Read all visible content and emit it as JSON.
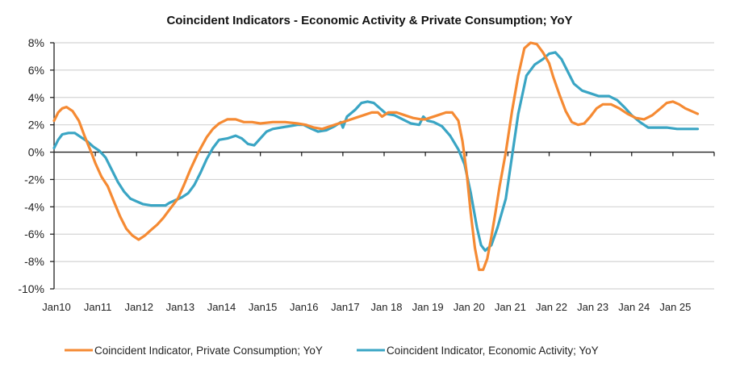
{
  "chart_data": {
    "type": "line",
    "title": "Coincident Indicators - Economic Activity & Private Consumption; YoY",
    "xlabel": "",
    "ylabel": "",
    "ylim": [
      -10,
      8
    ],
    "yticks": [
      8,
      6,
      4,
      2,
      0,
      -2,
      -4,
      -6,
      -8,
      -10
    ],
    "ytick_labels": [
      "8%",
      "6%",
      "4%",
      "2%",
      "0%",
      "-2%",
      "-4%",
      "-6%",
      "-8%",
      "-10%"
    ],
    "xlim": [
      2010.0,
      2026.0
    ],
    "xtick_labels": [
      "Jan10",
      "Jan11",
      "Jan12",
      "Jan13",
      "Jan14",
      "Jan15",
      "Jan16",
      "Jan17",
      "Jan 18",
      "Jan 19",
      "Jan 20",
      "Jan 21",
      "Jan 22",
      "Jan 23",
      "Jan 24",
      "Jan 25"
    ],
    "xtick_values": [
      2010,
      2011,
      2012,
      2013,
      2014,
      2015,
      2016,
      2017,
      2018,
      2019,
      2020,
      2021,
      2022,
      2023,
      2024,
      2025
    ],
    "grid": true,
    "legend_position": "bottom",
    "series": [
      {
        "name": "Coincident Indicator, Private Consumption; YoY",
        "color": "#F58A33",
        "x": [
          2010.0,
          2010.1,
          2010.2,
          2010.3,
          2010.45,
          2010.6,
          2010.75,
          2010.9,
          2011.0,
          2011.15,
          2011.3,
          2011.45,
          2011.6,
          2011.75,
          2011.9,
          2012.05,
          2012.2,
          2012.35,
          2012.5,
          2012.65,
          2012.8,
          2013.0,
          2013.15,
          2013.3,
          2013.5,
          2013.7,
          2013.85,
          2014.0,
          2014.2,
          2014.4,
          2014.6,
          2014.8,
          2015.0,
          2015.3,
          2015.6,
          2015.9,
          2016.1,
          2016.3,
          2016.5,
          2016.7,
          2016.9,
          2017.1,
          2017.3,
          2017.5,
          2017.7,
          2017.85,
          2017.95,
          2018.1,
          2018.3,
          2018.5,
          2018.7,
          2018.9,
          2019.0,
          2019.1,
          2019.3,
          2019.5,
          2019.65,
          2019.8,
          2019.9,
          2020.0,
          2020.1,
          2020.2,
          2020.3,
          2020.4,
          2020.5,
          2020.6,
          2020.7,
          2020.8,
          2020.95,
          2021.1,
          2021.25,
          2021.4,
          2021.55,
          2021.7,
          2021.85,
          2022.0,
          2022.1,
          2022.25,
          2022.4,
          2022.55,
          2022.7,
          2022.85,
          2023.0,
          2023.15,
          2023.3,
          2023.5,
          2023.7,
          2023.9,
          2024.1,
          2024.3,
          2024.5,
          2024.7,
          2024.85,
          2025.0,
          2025.15,
          2025.3,
          2025.45,
          2025.6
        ],
        "values": [
          2.3,
          2.9,
          3.2,
          3.3,
          3.0,
          2.3,
          1.1,
          0.0,
          -0.8,
          -1.8,
          -2.5,
          -3.6,
          -4.7,
          -5.6,
          -6.1,
          -6.4,
          -6.1,
          -5.7,
          -5.3,
          -4.8,
          -4.2,
          -3.4,
          -2.4,
          -1.3,
          0.0,
          1.1,
          1.7,
          2.1,
          2.4,
          2.4,
          2.2,
          2.2,
          2.1,
          2.2,
          2.2,
          2.1,
          2.0,
          1.8,
          1.7,
          1.9,
          2.1,
          2.3,
          2.5,
          2.7,
          2.9,
          2.9,
          2.6,
          2.9,
          2.9,
          2.7,
          2.5,
          2.4,
          2.4,
          2.5,
          2.7,
          2.9,
          2.9,
          2.3,
          0.8,
          -1.5,
          -4.5,
          -7.0,
          -8.6,
          -8.6,
          -7.8,
          -6.2,
          -4.4,
          -2.5,
          0.0,
          3.0,
          5.6,
          7.6,
          8.0,
          7.9,
          7.3,
          6.5,
          5.5,
          4.2,
          3.0,
          2.2,
          2.0,
          2.1,
          2.6,
          3.2,
          3.5,
          3.5,
          3.2,
          2.8,
          2.5,
          2.4,
          2.7,
          3.2,
          3.6,
          3.7,
          3.5,
          3.2,
          3.0,
          2.8
        ]
      },
      {
        "name": "Coincident Indicator, Economic Activity; YoY",
        "color": "#3AA5C4",
        "x": [
          2010.0,
          2010.1,
          2010.2,
          2010.35,
          2010.5,
          2010.65,
          2010.8,
          2010.95,
          2011.1,
          2011.25,
          2011.4,
          2011.55,
          2011.7,
          2011.85,
          2012.0,
          2012.15,
          2012.35,
          2012.55,
          2012.7,
          2012.8,
          2012.95,
          2013.1,
          2013.25,
          2013.4,
          2013.55,
          2013.7,
          2013.85,
          2014.0,
          2014.2,
          2014.4,
          2014.55,
          2014.7,
          2014.85,
          2015.0,
          2015.15,
          2015.3,
          2015.5,
          2015.7,
          2015.9,
          2016.05,
          2016.25,
          2016.4,
          2016.6,
          2016.8,
          2016.95,
          2017.0,
          2017.1,
          2017.3,
          2017.45,
          2017.6,
          2017.75,
          2017.9,
          2018.05,
          2018.25,
          2018.45,
          2018.65,
          2018.85,
          2018.95,
          2019.05,
          2019.2,
          2019.4,
          2019.6,
          2019.8,
          2019.95,
          2020.1,
          2020.25,
          2020.35,
          2020.45,
          2020.6,
          2020.75,
          2020.95,
          2021.1,
          2021.25,
          2021.45,
          2021.65,
          2021.85,
          2022.0,
          2022.15,
          2022.3,
          2022.45,
          2022.6,
          2022.8,
          2023.0,
          2023.2,
          2023.45,
          2023.65,
          2023.85,
          2024.0,
          2024.2,
          2024.4,
          2024.6,
          2024.85,
          2025.1,
          2025.35,
          2025.6
        ],
        "values": [
          0.3,
          0.9,
          1.3,
          1.4,
          1.4,
          1.1,
          0.8,
          0.4,
          0.1,
          -0.4,
          -1.3,
          -2.2,
          -2.9,
          -3.4,
          -3.6,
          -3.8,
          -3.9,
          -3.9,
          -3.9,
          -3.7,
          -3.5,
          -3.3,
          -3.0,
          -2.4,
          -1.5,
          -0.5,
          0.3,
          0.9,
          1.0,
          1.2,
          1.0,
          0.6,
          0.5,
          1.0,
          1.5,
          1.7,
          1.8,
          1.9,
          2.0,
          2.0,
          1.7,
          1.5,
          1.6,
          1.9,
          2.2,
          1.8,
          2.6,
          3.1,
          3.6,
          3.7,
          3.6,
          3.2,
          2.8,
          2.7,
          2.4,
          2.1,
          2.0,
          2.6,
          2.3,
          2.2,
          1.9,
          1.2,
          0.2,
          -0.9,
          -3.0,
          -5.5,
          -6.8,
          -7.2,
          -6.8,
          -5.5,
          -3.4,
          -0.3,
          2.8,
          5.6,
          6.4,
          6.8,
          7.2,
          7.3,
          6.8,
          5.9,
          5.0,
          4.5,
          4.3,
          4.1,
          4.1,
          3.8,
          3.2,
          2.7,
          2.2,
          1.8,
          1.8,
          1.8,
          1.7,
          1.7,
          1.7
        ]
      }
    ]
  }
}
